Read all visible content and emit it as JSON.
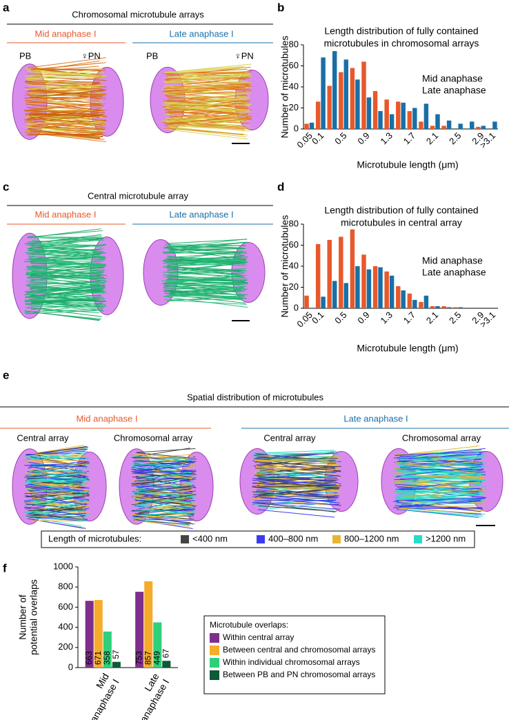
{
  "panel_a": {
    "label": "a",
    "title": "Chromosomal microtubule arrays",
    "left": "Mid anaphase I",
    "right": "Late anaphase I",
    "pb_left": "PB",
    "pn_left": "♀PN",
    "pb_right": "PB",
    "pn_right": "♀PN"
  },
  "panel_c": {
    "label": "c",
    "title": "Central microtubule array",
    "left": "Mid anaphase I",
    "right": "Late anaphase I"
  },
  "panel_e": {
    "label": "e",
    "title": "Spatial distribution of microtubules",
    "left": "Mid anaphase I",
    "right": "Late anaphase I",
    "sub": [
      "Central array",
      "Chromosomal array",
      "Central array",
      "Chromosomal array"
    ],
    "legend_title": "Length of microtubules:",
    "legend": [
      {
        "name": "<400 nm",
        "color": "#444444"
      },
      {
        "name": "400–800 nm",
        "color": "#3b3bf0"
      },
      {
        "name": "800–1200 nm",
        "color": "#e6b632"
      },
      {
        "name": ">1200 nm",
        "color": "#27dcc8"
      }
    ]
  },
  "chart_data": [
    {
      "type": "bar",
      "panel": "b",
      "title": [
        "Length distribution of fully contained",
        "microtubules in chromosomal arrays"
      ],
      "x_label": "Microtubule length (μm)",
      "y_label": "Number of microtubules",
      "categories": [
        "0.05",
        "0.1",
        null,
        "0.5",
        null,
        "0.9",
        null,
        "1.3",
        null,
        "1.7",
        null,
        "2.1",
        null,
        "2.5",
        null,
        "2.9",
        ">3.1"
      ],
      "series": [
        {
          "name": "Mid anaphase",
          "color": "#e8582a",
          "values": [
            5,
            26,
            41,
            54,
            58,
            64,
            36,
            28,
            26,
            17,
            7,
            3,
            3,
            0,
            0,
            2,
            0
          ]
        },
        {
          "name": "Late anaphase",
          "color": "#1a6fa6",
          "values": [
            6,
            68,
            74,
            66,
            47,
            30,
            17,
            14,
            25,
            20,
            24,
            14,
            8,
            5,
            7,
            3,
            7
          ]
        }
      ],
      "ylim": [
        0,
        80
      ],
      "yticks": [
        0,
        20,
        40,
        60,
        80
      ],
      "legend": "right"
    },
    {
      "type": "bar",
      "panel": "d",
      "title": [
        "Length distribution of fully contained",
        "microtubules in central array"
      ],
      "x_label": "Microtubule length (μm)",
      "y_label": "Number of microtubules",
      "categories": [
        "0.05",
        "0.1",
        null,
        "0.5",
        null,
        "0.9",
        null,
        "1.3",
        null,
        "1.7",
        null,
        "2.1",
        null,
        "2.5",
        null,
        "2.9",
        ">3.1"
      ],
      "series": [
        {
          "name": "Mid anaphase",
          "color": "#e8582a",
          "values": [
            12,
            61,
            65,
            68,
            75,
            51,
            40,
            35,
            21,
            14,
            6,
            2,
            2,
            1,
            0,
            0,
            0
          ]
        },
        {
          "name": "Late anaphase",
          "color": "#1a6fa6",
          "values": [
            0,
            11,
            26,
            24,
            40,
            37,
            39,
            31,
            17,
            8,
            12,
            2,
            1,
            1,
            0,
            0,
            0
          ]
        }
      ],
      "ylim": [
        0,
        80
      ],
      "yticks": [
        0,
        20,
        40,
        60,
        80
      ],
      "legend": "right"
    },
    {
      "type": "bar",
      "panel": "f",
      "y_label": [
        "Number of",
        "potential overlaps"
      ],
      "categories": [
        [
          "Mid",
          "anaphase I"
        ],
        [
          "Late",
          "anaphase I"
        ]
      ],
      "category_colors": [
        "#e8582a",
        "#1a6fa6"
      ],
      "legend_title": "Microtubule overlaps:",
      "series": [
        {
          "name": "Within central array",
          "color": "#7e2f8e",
          "values": [
            663,
            753
          ]
        },
        {
          "name": "Between central and chromosomal arrays",
          "color": "#f7ab2a",
          "values": [
            671,
            857
          ]
        },
        {
          "name": "Within individual chromosomal arrays",
          "color": "#2fd07a",
          "values": [
            358,
            449
          ]
        },
        {
          "name": "Between PB and PN chromosomal arrays",
          "color": "#0c5a36",
          "values": [
            57,
            67
          ]
        }
      ],
      "ylim": [
        0,
        1000
      ],
      "yticks": [
        0,
        200,
        400,
        600,
        800,
        1000
      ],
      "legend": "right"
    }
  ]
}
